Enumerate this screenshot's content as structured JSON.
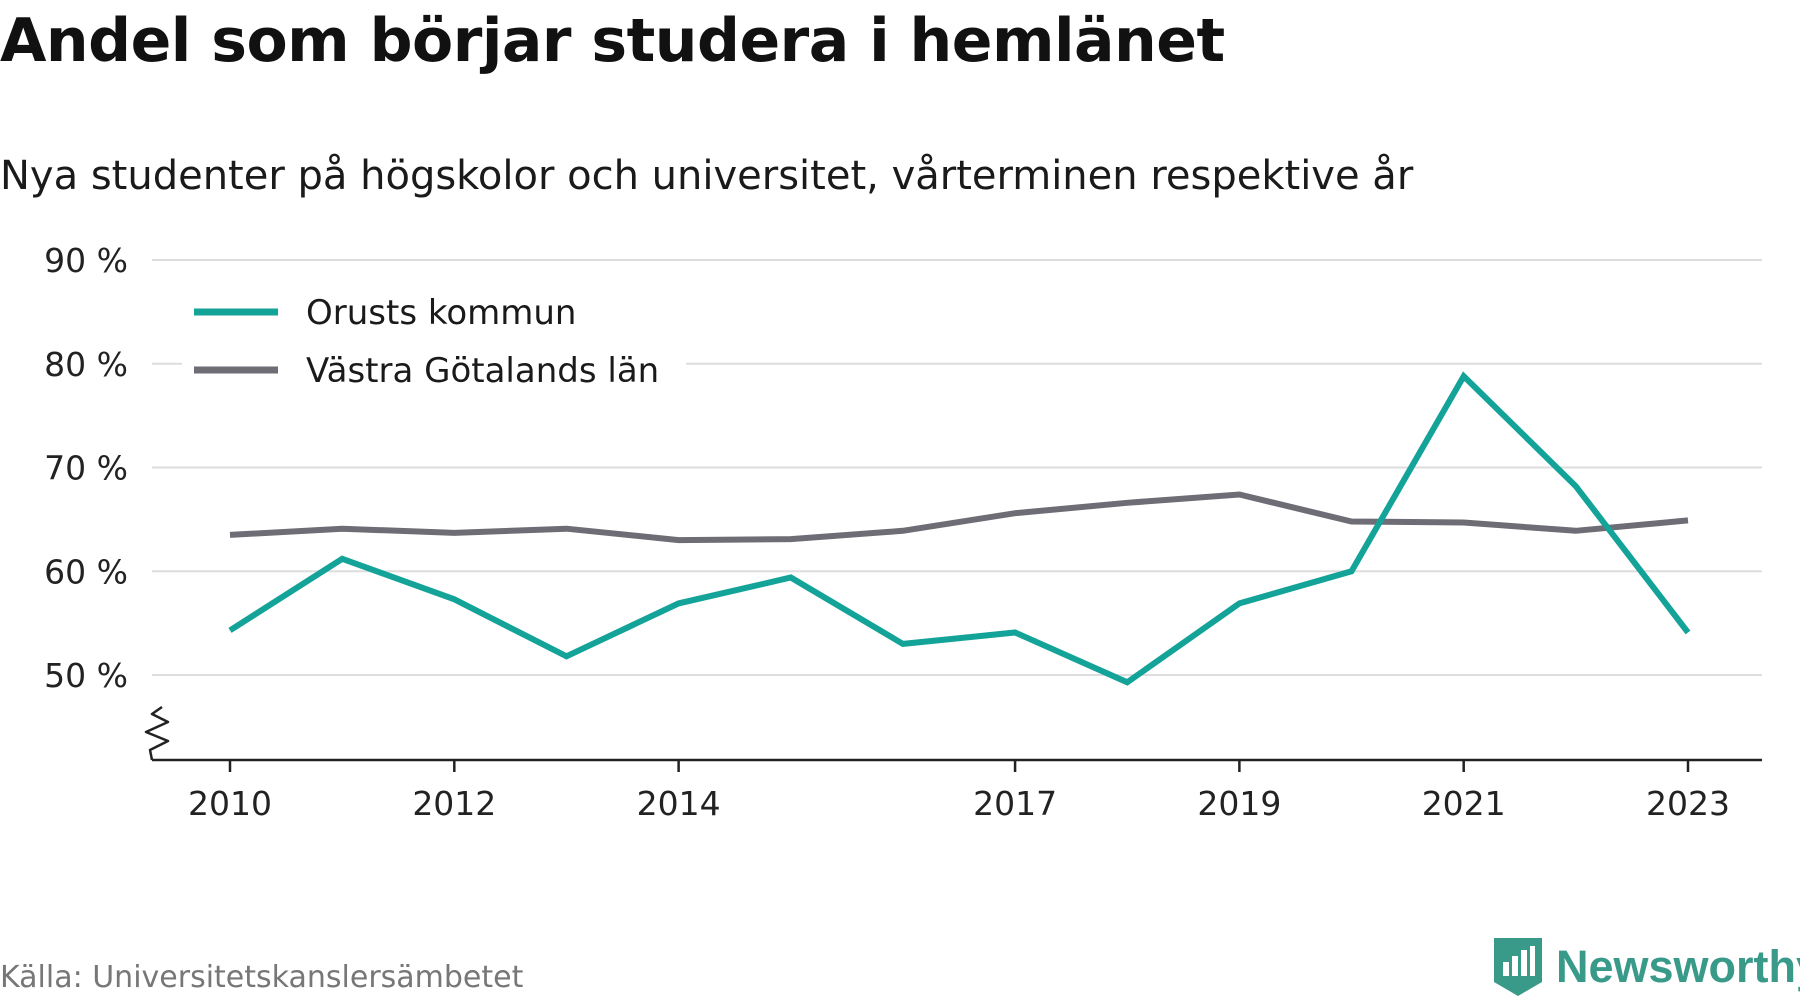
{
  "title": "Andel som börjar studera i hemlänet",
  "subtitle": "Nya studenter på högskolor och universitet, vårterminen respektive år",
  "source": "Källa: Universitetskanslersämbetet",
  "brand": "Newsworthy",
  "chart_data": {
    "type": "line",
    "x": [
      2010,
      2011,
      2012,
      2013,
      2014,
      2015,
      2016,
      2017,
      2018,
      2019,
      2020,
      2021,
      2022,
      2023
    ],
    "x_tick_labels": [
      "2010",
      "2012",
      "2014",
      "2017",
      "2019",
      "2021",
      "2023"
    ],
    "x_ticks": [
      2010,
      2012,
      2014,
      2017,
      2019,
      2021,
      2023
    ],
    "y_ticks": [
      50,
      60,
      70,
      80,
      90
    ],
    "y_tick_labels": [
      "50 %",
      "60 %",
      "70 %",
      "80 %",
      "90 %"
    ],
    "ylim": [
      42,
      90
    ],
    "grid": true,
    "axis_break": true,
    "legend_position": "top-left",
    "series": [
      {
        "name": "Orusts kommun",
        "color": "#14a398",
        "values": [
          54.3,
          61.2,
          57.3,
          51.8,
          56.9,
          59.4,
          53.0,
          54.1,
          49.3,
          56.9,
          60.0,
          78.8,
          68.2,
          54.1
        ]
      },
      {
        "name": "Västra Götalands län",
        "color": "#6e6c74",
        "values": [
          63.5,
          64.1,
          63.7,
          64.1,
          63.0,
          63.1,
          63.9,
          65.6,
          66.6,
          67.4,
          64.8,
          64.7,
          63.9,
          64.9
        ]
      }
    ]
  }
}
